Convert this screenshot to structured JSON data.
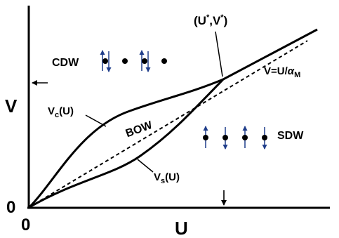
{
  "axes": {
    "x_label": "U",
    "y_label": "V",
    "x_origin": "0",
    "y_origin": "0"
  },
  "regions": {
    "cdw": "CDW",
    "bow": "BOW",
    "sdw": "SDW"
  },
  "curves": {
    "vc_main": "V",
    "vc_sub": "c",
    "vc_tail": "(U)",
    "vs_main": "V",
    "vs_sub": "s",
    "vs_tail": "(U)",
    "dashed_lhs": "V=U/",
    "dashed_alpha": "α",
    "dashed_sub": "M"
  },
  "point": {
    "open": "(U",
    "star1": "*",
    "sep": ",V",
    "star2": "*",
    "close": ")"
  },
  "colors": {
    "axis": "#000000",
    "spin_arrow": "#1f3d8a",
    "site": "#000000"
  },
  "icons": {
    "spin_up": "arrow-up-icon",
    "spin_down": "arrow-down-icon",
    "site": "dot-icon"
  }
}
